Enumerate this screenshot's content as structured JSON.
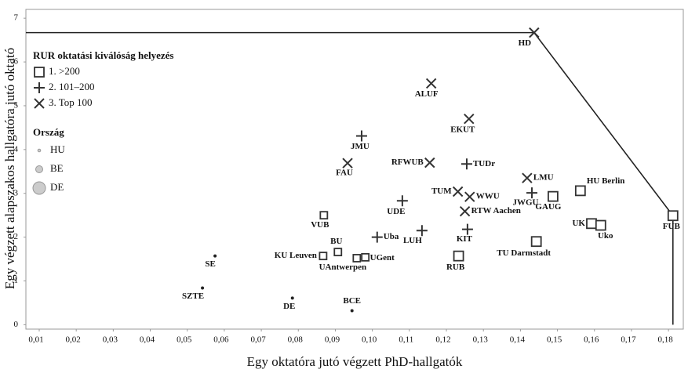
{
  "chart_data": {
    "type": "scatter",
    "xlabel": "Egy oktatóra jutó végzett PhD-hallgatók",
    "ylabel": "Egy végzett alapszakos hallgatóra jutó oktató",
    "xlim": [
      0.0064,
      0.184
    ],
    "ylim": [
      -0.1,
      7.2
    ],
    "xticks": [
      {
        "value": 0.01,
        "label": "0,01"
      },
      {
        "value": 0.02,
        "label": "0,02"
      },
      {
        "value": 0.03,
        "label": "0,03"
      },
      {
        "value": 0.04,
        "label": "0,04"
      },
      {
        "value": 0.05,
        "label": "0,05"
      },
      {
        "value": 0.06,
        "label": "0,06"
      },
      {
        "value": 0.07,
        "label": "0,07"
      },
      {
        "value": 0.08,
        "label": "0,08"
      },
      {
        "value": 0.09,
        "label": "0,09"
      },
      {
        "value": 0.1,
        "label": "0,10"
      },
      {
        "value": 0.11,
        "label": "0,11"
      },
      {
        "value": 0.12,
        "label": "0,12"
      },
      {
        "value": 0.13,
        "label": "0,13"
      },
      {
        "value": 0.14,
        "label": "0,14"
      },
      {
        "value": 0.15,
        "label": "0,15"
      },
      {
        "value": 0.16,
        "label": "0,16"
      },
      {
        "value": 0.17,
        "label": "0,17"
      },
      {
        "value": 0.18,
        "label": "0,18"
      }
    ],
    "yticks": [
      0,
      1,
      2,
      3,
      4,
      5,
      6,
      7
    ],
    "legend_rur_title": "RUR oktatási kiválóság helyezés",
    "rur": [
      "1. >200",
      "2. 101–200",
      "3. Top 100"
    ],
    "legend_country_title": "Ország",
    "countries": [
      "HU",
      "BE",
      "DE"
    ],
    "points": [
      {
        "label": "HD",
        "x": 0.1437,
        "y": 6.67,
        "rur": 2,
        "country": 2
      },
      {
        "label": "ALUF",
        "x": 0.1159,
        "y": 5.51,
        "rur": 2,
        "country": 2
      },
      {
        "label": "EKUT",
        "x": 0.1261,
        "y": 4.7,
        "rur": 2,
        "country": 2
      },
      {
        "label": "JMU",
        "x": 0.0971,
        "y": 4.31,
        "rur": 1,
        "country": 2
      },
      {
        "label": "FAU",
        "x": 0.0933,
        "y": 3.69,
        "rur": 2,
        "country": 2
      },
      {
        "label": "RFWUB",
        "x": 0.1155,
        "y": 3.7,
        "rur": 2,
        "country": 2
      },
      {
        "label": "TUDr",
        "x": 0.1255,
        "y": 3.67,
        "rur": 1,
        "country": 2
      },
      {
        "label": "LMU",
        "x": 0.1418,
        "y": 3.35,
        "rur": 2,
        "country": 2
      },
      {
        "label": "HU Berlin",
        "x": 0.1562,
        "y": 3.06,
        "rur": 0,
        "country": 2
      },
      {
        "label": "TUM",
        "x": 0.1231,
        "y": 3.04,
        "rur": 2,
        "country": 2
      },
      {
        "label": "WWU",
        "x": 0.1263,
        "y": 2.92,
        "rur": 2,
        "country": 2
      },
      {
        "label": "JWGU",
        "x": 0.1431,
        "y": 3.01,
        "rur": 1,
        "country": 2
      },
      {
        "label": "GAUG",
        "x": 0.1488,
        "y": 2.93,
        "rur": 0,
        "country": 2
      },
      {
        "label": "UDE",
        "x": 0.1081,
        "y": 2.83,
        "rur": 1,
        "country": 2
      },
      {
        "label": "RTW Aachen",
        "x": 0.125,
        "y": 2.59,
        "rur": 2,
        "country": 2
      },
      {
        "label": "FUB",
        "x": 0.1812,
        "y": 2.49,
        "rur": 0,
        "country": 2
      },
      {
        "label": "VUB",
        "x": 0.0869,
        "y": 2.5,
        "rur": 0,
        "country": 1
      },
      {
        "label": "UK",
        "x": 0.1592,
        "y": 2.31,
        "rur": 0,
        "country": 2
      },
      {
        "label": "Uko",
        "x": 0.1617,
        "y": 2.27,
        "rur": 0,
        "country": 2
      },
      {
        "label": "KIT",
        "x": 0.1257,
        "y": 2.18,
        "rur": 1,
        "country": 2
      },
      {
        "label": "LUH",
        "x": 0.1134,
        "y": 2.15,
        "rur": 1,
        "country": 2
      },
      {
        "label": "Uba",
        "x": 0.1013,
        "y": 2.0,
        "rur": 1,
        "country": 2
      },
      {
        "label": "TU Darmstadt",
        "x": 0.1443,
        "y": 1.9,
        "rur": 0,
        "country": 2
      },
      {
        "label": "BU",
        "x": 0.0907,
        "y": 1.66,
        "rur": 0,
        "country": 1
      },
      {
        "label": "KU Leuven",
        "x": 0.0867,
        "y": 1.57,
        "rur": 0,
        "country": 1
      },
      {
        "label": "UAntwerpen",
        "x": 0.0958,
        "y": 1.52,
        "rur": 0,
        "country": 1
      },
      {
        "label": "UGent",
        "x": 0.0981,
        "y": 1.54,
        "rur": 0,
        "country": 1
      },
      {
        "label": "RUB",
        "x": 0.1233,
        "y": 1.57,
        "rur": 0,
        "country": 2
      },
      {
        "label": "SE",
        "x": 0.0575,
        "y": 1.57,
        "rur": 0,
        "country": 0
      },
      {
        "label": "SZTE",
        "x": 0.0541,
        "y": 0.84,
        "rur": 0,
        "country": 0
      },
      {
        "label": "DE",
        "x": 0.0784,
        "y": 0.61,
        "rur": 0,
        "country": 0
      },
      {
        "label": "BCE",
        "x": 0.0945,
        "y": 0.32,
        "rur": 0,
        "country": 0
      }
    ]
  }
}
